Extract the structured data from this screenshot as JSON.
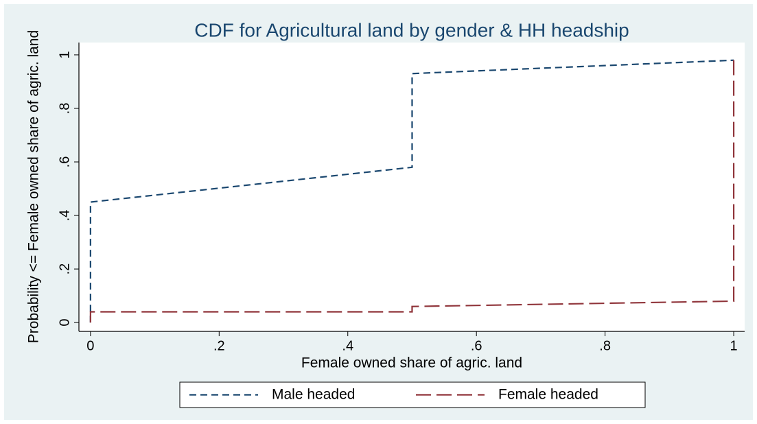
{
  "chart_data": {
    "type": "line",
    "title": "CDF for Agricultural land by gender & HH headship",
    "xlabel": "Female owned share of agric. land",
    "ylabel": "Probability <= Female owned share of agric. land",
    "series": [
      {
        "name": "Male headed",
        "color": "#1a476f",
        "dash": "dash",
        "x": [
          0,
          0,
          0.5,
          0.5,
          1
        ],
        "values": [
          0,
          0.45,
          0.58,
          0.93,
          0.98
        ]
      },
      {
        "name": "Female headed",
        "color": "#90353b",
        "dash": "longdash",
        "x": [
          0,
          0,
          0.5,
          0.5,
          1,
          1
        ],
        "values": [
          0,
          0.04,
          0.04,
          0.06,
          0.08,
          1
        ]
      }
    ],
    "xlim": [
      -0.018,
      1.017
    ],
    "ylim": [
      -0.033,
      1.046
    ],
    "xticks": [
      0,
      {
        "value": 0.2,
        "label": ".2"
      },
      {
        "value": 0.4,
        "label": ".4"
      },
      {
        "value": 0.6,
        "label": ".6"
      },
      {
        "value": 0.8,
        "label": ".8"
      },
      1
    ],
    "yticks": [
      0,
      {
        "value": 0.2,
        "label": ".2"
      },
      {
        "value": 0.4,
        "label": ".4"
      },
      {
        "value": 0.6,
        "label": ".6"
      },
      {
        "value": 0.8,
        "label": ".8"
      },
      1
    ],
    "legend": "bottom"
  }
}
